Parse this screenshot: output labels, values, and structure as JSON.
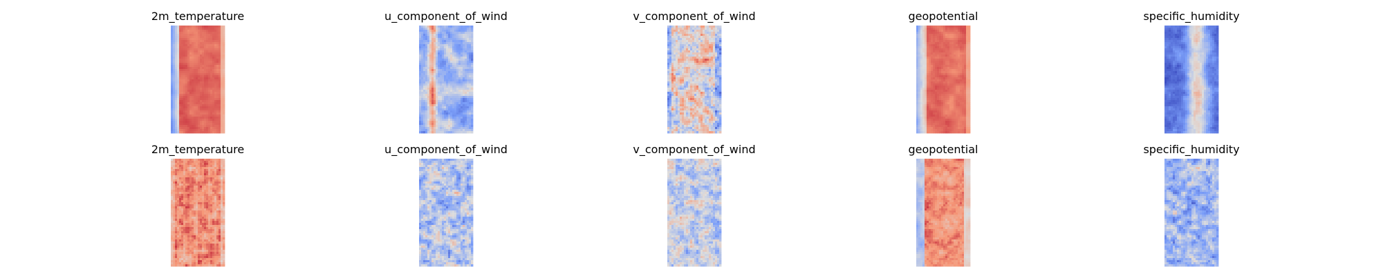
{
  "chart_data": {
    "type": "heatmap",
    "colormap": "coolwarm",
    "grid": false,
    "axes_visible": false,
    "rows": 2,
    "cols": 5,
    "subplots": [
      {
        "title": "2m_temperature",
        "row": 0,
        "col": 0,
        "pattern": "temp_top"
      },
      {
        "title": "u_component_of_wind",
        "row": 0,
        "col": 1,
        "pattern": "uwind_top"
      },
      {
        "title": "v_component_of_wind",
        "row": 0,
        "col": 2,
        "pattern": "vwind_top"
      },
      {
        "title": "geopotential",
        "row": 0,
        "col": 3,
        "pattern": "geo_top"
      },
      {
        "title": "specific_humidity",
        "row": 0,
        "col": 4,
        "pattern": "hum_top"
      },
      {
        "title": "2m_temperature",
        "row": 1,
        "col": 0,
        "pattern": "temp_bottom"
      },
      {
        "title": "u_component_of_wind",
        "row": 1,
        "col": 1,
        "pattern": "uwind_bottom"
      },
      {
        "title": "v_component_of_wind",
        "row": 1,
        "col": 2,
        "pattern": "vwind_bottom"
      },
      {
        "title": "geopotential",
        "row": 1,
        "col": 3,
        "pattern": "geo_bottom"
      },
      {
        "title": "specific_humidity",
        "row": 1,
        "col": 4,
        "pattern": "hum_bottom"
      }
    ]
  }
}
